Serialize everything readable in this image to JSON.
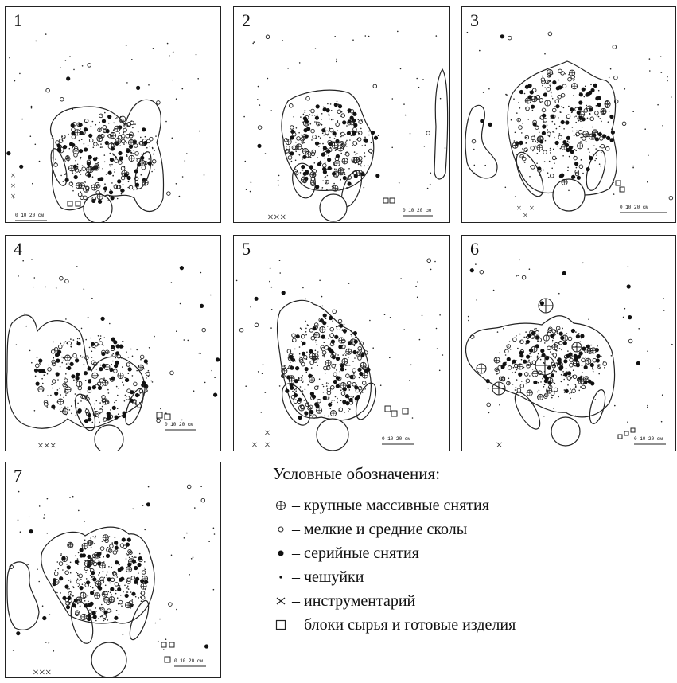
{
  "panels": [
    {
      "number": "1",
      "scale": "0  10  20 см"
    },
    {
      "number": "2",
      "scale": "0  10  20 см"
    },
    {
      "number": "3",
      "scale": "0  10  20 см"
    },
    {
      "number": "4",
      "scale": "0  10  20 см"
    },
    {
      "number": "5",
      "scale": "0  10  20 см"
    },
    {
      "number": "6",
      "scale": "0  10  20 см"
    },
    {
      "number": "7",
      "scale": "0  10  20 см"
    }
  ],
  "legend": {
    "title": "Условные обозначения:",
    "items": [
      {
        "icon": "large-massive-flake-icon",
        "text": "– крупные массивные снятия"
      },
      {
        "icon": "small-medium-chip-icon",
        "text": "– мелкие и средние сколы"
      },
      {
        "icon": "serial-removal-icon",
        "text": "– серийные снятия"
      },
      {
        "icon": "scale-flake-icon",
        "text": "– чешуйки"
      },
      {
        "icon": "tool-icon",
        "text": "– инструментарий"
      },
      {
        "icon": "raw-block-icon",
        "text": "– блоки сырья и готовые изделия"
      }
    ]
  },
  "colors": {
    "ink": "#111111",
    "background": "#ffffff"
  }
}
